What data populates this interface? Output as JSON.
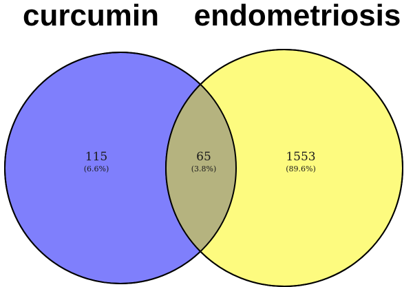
{
  "sets": [
    {
      "name": "curcumin",
      "color": "#7f7ffc",
      "only_count": "115",
      "only_percent": "(6.6%)"
    },
    {
      "name": "endometriosis",
      "color": "#fdfb7f",
      "only_count": "1553",
      "only_percent": "(89.6%)"
    }
  ],
  "intersection": {
    "color": "#b5b37f",
    "count": "65",
    "percent": "(3.8%)"
  },
  "outline_color": "#000000"
}
